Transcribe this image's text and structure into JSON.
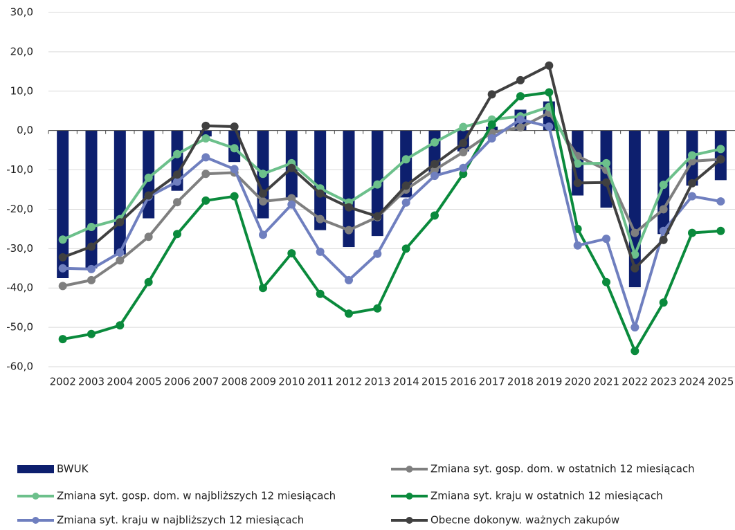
{
  "chart_data": {
    "type": "bar-line",
    "categories": [
      "2002",
      "2003",
      "2004",
      "2005",
      "2006",
      "2007",
      "2008",
      "2009",
      "2010",
      "2011",
      "2012",
      "2013",
      "2014",
      "2015",
      "2016",
      "2017",
      "2018",
      "2019",
      "2020",
      "2021",
      "2022",
      "2023",
      "2024",
      "2025"
    ],
    "ylim": [
      -60,
      30
    ],
    "yticks": [
      {
        "value": -60,
        "label": "-60,0"
      },
      {
        "value": -50,
        "label": "-50,0"
      },
      {
        "value": -40,
        "label": "-40,0"
      },
      {
        "value": -30,
        "label": "-30,0"
      },
      {
        "value": -20,
        "label": "-20,0"
      },
      {
        "value": -10,
        "label": "-10,0"
      },
      {
        "value": 0,
        "label": "0,0"
      },
      {
        "value": 10,
        "label": "10,0"
      },
      {
        "value": 20,
        "label": "20,0"
      },
      {
        "value": 30,
        "label": "30,0"
      }
    ],
    "grid": true,
    "series": [
      {
        "name": "BWUK",
        "type": "bar",
        "color": "#0d1f6e",
        "values": [
          -37.5,
          -35,
          -31.5,
          -22.3,
          -15.3,
          -1.5,
          -8,
          -22.3,
          -17,
          -25.3,
          -29.6,
          -26.8,
          -17,
          -10.9,
          -5.3,
          1,
          5.3,
          7.4,
          -16.5,
          -19.6,
          -39.8,
          -26.3,
          -14,
          -12.6
        ]
      },
      {
        "name": "Zmiana syt. gosp. dom. w ostatnich 12 miesiącach",
        "type": "line",
        "color": "#7f7f7f",
        "values": [
          -39.5,
          -38,
          -33,
          -27,
          -18.2,
          -11,
          -10.7,
          -18,
          -17.2,
          -22.5,
          -25.3,
          -22,
          -15,
          -10,
          -5.5,
          -0.5,
          0.8,
          4.5,
          -6.5,
          -10,
          -26,
          -20,
          -7.8,
          -7.3
        ]
      },
      {
        "name": "Zmiana syt. gosp. dom. w najbliższych 12 miesiącach",
        "type": "line",
        "color": "#6cc08b",
        "values": [
          -27.7,
          -24.5,
          -22.5,
          -12,
          -6,
          -2,
          -4.5,
          -11,
          -8.3,
          -14.7,
          -18.3,
          -13.7,
          -7.3,
          -3,
          0.9,
          2.8,
          3.6,
          6,
          -8.4,
          -8.3,
          -31.5,
          -13.8,
          -6.3,
          -4.7
        ]
      },
      {
        "name": "Zmiana syt. kraju w ostatnich 12 miesiącach",
        "type": "line",
        "color": "#0a8a3c",
        "values": [
          -53,
          -51.7,
          -49.5,
          -38.5,
          -26.3,
          -17.8,
          -16.7,
          -40,
          -31.2,
          -41.5,
          -46.5,
          -45.2,
          -30,
          -21.6,
          -11,
          1.5,
          8.7,
          9.7,
          -25,
          -38.5,
          -56,
          -43.7,
          -26,
          -25.5
        ]
      },
      {
        "name": "Zmiana syt. kraju w najbliższych 12 miesiącach",
        "type": "line",
        "color": "#6f7fbf",
        "values": [
          -35,
          -35.2,
          -31,
          -16.8,
          -13,
          -6.8,
          -9.8,
          -26.5,
          -18.8,
          -30.8,
          -38,
          -31.3,
          -18.3,
          -11.5,
          -9.5,
          -2,
          2.8,
          1,
          -29.2,
          -27.5,
          -50,
          -25.5,
          -16.7,
          -18
        ]
      },
      {
        "name": "Obecne dokonyw. ważnych zakupów",
        "type": "line",
        "color": "#404040",
        "values": [
          -32.2,
          -29.5,
          -23.3,
          -16.5,
          -11.2,
          1.2,
          1,
          -16,
          -9.5,
          -16,
          -19.5,
          -21.8,
          -14,
          -8.5,
          -3.2,
          9.2,
          12.8,
          16.5,
          -13.3,
          -13.2,
          -35,
          -27.8,
          -13.4,
          -7.3
        ]
      }
    ]
  }
}
